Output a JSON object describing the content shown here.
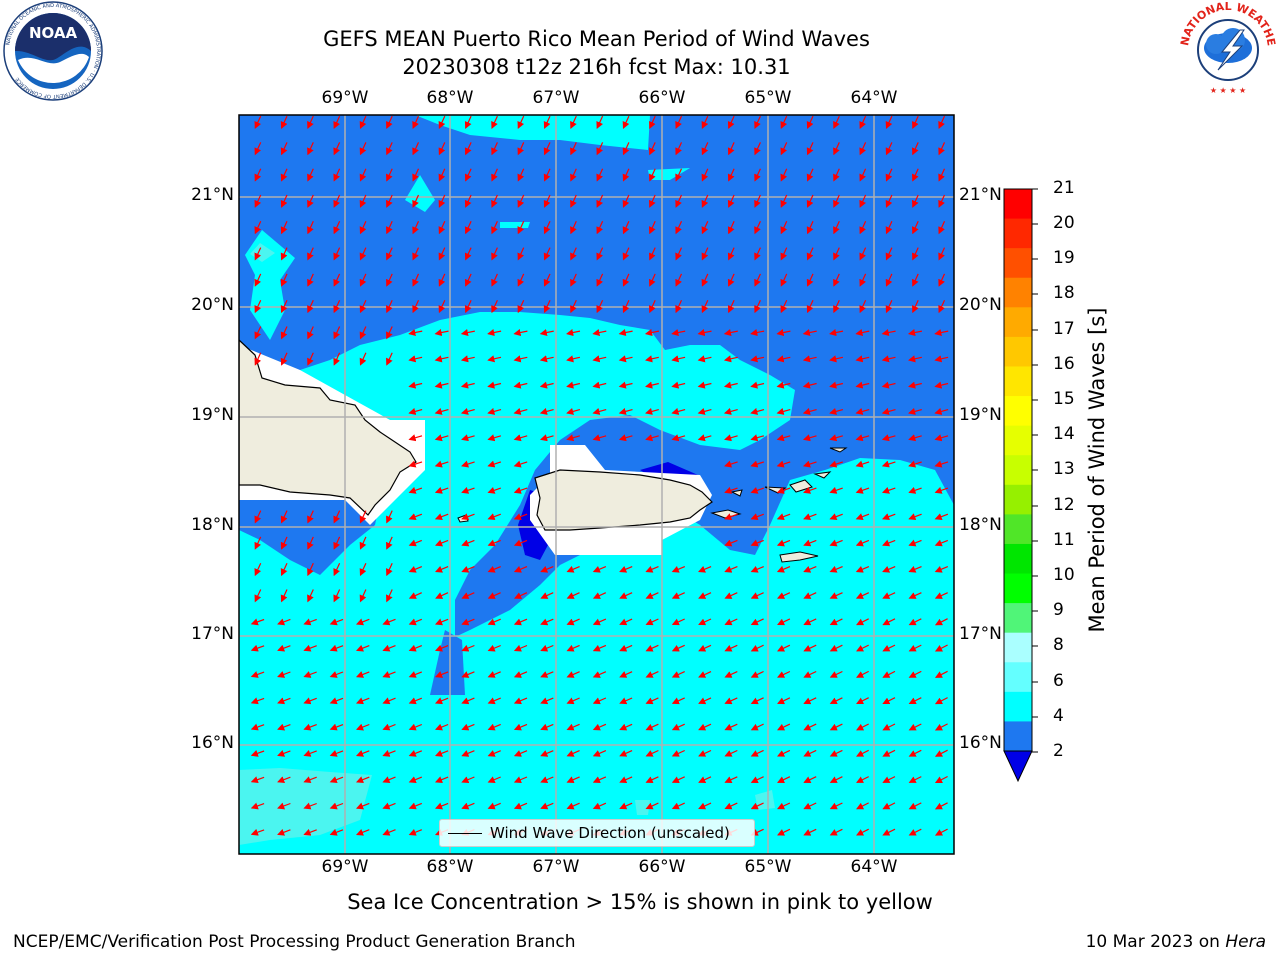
{
  "title": {
    "line1": "GEFS MEAN Puerto Rico Mean Period of Wind Waves",
    "line2": "20230308 t12z 216h fcst   Max: 10.31"
  },
  "map": {
    "lon_labels": [
      "69°W",
      "68°W",
      "67°W",
      "66°W",
      "65°W",
      "64°W"
    ],
    "lat_labels": [
      "21°N",
      "20°N",
      "19°N",
      "18°N",
      "17°N",
      "16°N"
    ],
    "land_color": "#efedde",
    "ocean_colors": {
      "period_2_4": "#1e78f0",
      "period_4_6": "#00ffff",
      "period_6_8": "#4bf5f0",
      "below_2": "#0000e6"
    },
    "vector_color": "#ff0000"
  },
  "legend": {
    "label": "Wind Wave Direction (unscaled)"
  },
  "colorbar": {
    "title": "Mean Period of Wind Waves [s]",
    "ticks": [
      "21",
      "20",
      "19",
      "18",
      "17",
      "16",
      "15",
      "14",
      "13",
      "12",
      "11",
      "10",
      "9",
      "8",
      "6",
      "4",
      "2"
    ],
    "colors": [
      "#ff0000",
      "#ff2800",
      "#ff5000",
      "#ff8200",
      "#ffaa00",
      "#ffc800",
      "#ffe600",
      "#ffff00",
      "#e6ff00",
      "#c8ff00",
      "#96f000",
      "#50e628",
      "#00e600",
      "#00ff00",
      "#50f578",
      "#aaffff",
      "#64ffff",
      "#00ffff",
      "#1e78f0"
    ],
    "extend_color": "#0000e6"
  },
  "sea_ice_note": "Sea Ice Concentration > 15% is shown in pink to yellow",
  "footer": {
    "left": "NCEP/EMC/Verification Post Processing Product Generation Branch",
    "right_date": "10 Mar 2023 on",
    "right_host": "Hera"
  },
  "logos": {
    "noaa": {
      "text": "NOAA",
      "ring_text": "NATIONAL OCEANIC AND ATMOSPHERIC ADMINISTRATION · U.S. DEPARTMENT OF COMMERCE"
    },
    "nws": {
      "ring_text": "NATIONAL WEATHER SERVICE"
    }
  }
}
